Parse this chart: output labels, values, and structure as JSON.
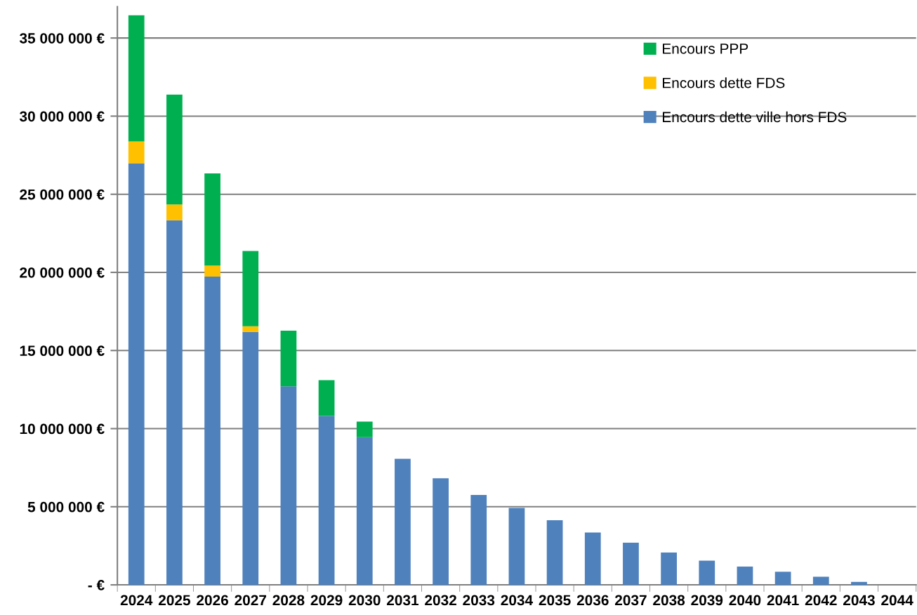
{
  "chart_data": {
    "type": "bar",
    "stacked": true,
    "categories": [
      "2024",
      "2025",
      "2026",
      "2027",
      "2028",
      "2029",
      "2030",
      "2031",
      "2032",
      "2033",
      "2034",
      "2035",
      "2036",
      "2037",
      "2038",
      "2039",
      "2040",
      "2041",
      "2042",
      "2043",
      "2044"
    ],
    "series": [
      {
        "name": "Encours dette ville hors FDS",
        "color": "#4f81bd",
        "values": [
          26990000,
          23330000,
          19730000,
          16190000,
          12710000,
          10810000,
          9450000,
          8070000,
          6820000,
          5750000,
          4920000,
          4140000,
          3350000,
          2700000,
          2070000,
          1550000,
          1170000,
          840000,
          520000,
          190000,
          0
        ]
      },
      {
        "name": "Encours dette FDS",
        "color": "#ffc000",
        "values": [
          1390000,
          1020000,
          710000,
          360000,
          null,
          null,
          null,
          null,
          null,
          null,
          null,
          null,
          null,
          null,
          null,
          null,
          null,
          null,
          null,
          null,
          null
        ]
      },
      {
        "name": "Encours PPP",
        "color": "#00b050",
        "values": [
          8080000,
          7030000,
          5890000,
          4820000,
          3560000,
          2290000,
          1000000,
          null,
          null,
          null,
          null,
          null,
          null,
          null,
          null,
          null,
          null,
          null,
          null,
          null,
          null
        ]
      }
    ],
    "ylim": [
      0,
      37000000
    ],
    "yticks": [
      {
        "value": 0,
        "label": "- €"
      },
      {
        "value": 5000000,
        "label": "5 000 000 €"
      },
      {
        "value": 10000000,
        "label": "10 000 000 €"
      },
      {
        "value": 15000000,
        "label": "15 000 000 €"
      },
      {
        "value": 20000000,
        "label": "20 000 000 €"
      },
      {
        "value": 25000000,
        "label": "25 000 000 €"
      },
      {
        "value": 30000000,
        "label": "30 000 000 €"
      },
      {
        "value": 35000000,
        "label": "35 000 000 €"
      }
    ],
    "grid": "y",
    "legend": "top right"
  }
}
